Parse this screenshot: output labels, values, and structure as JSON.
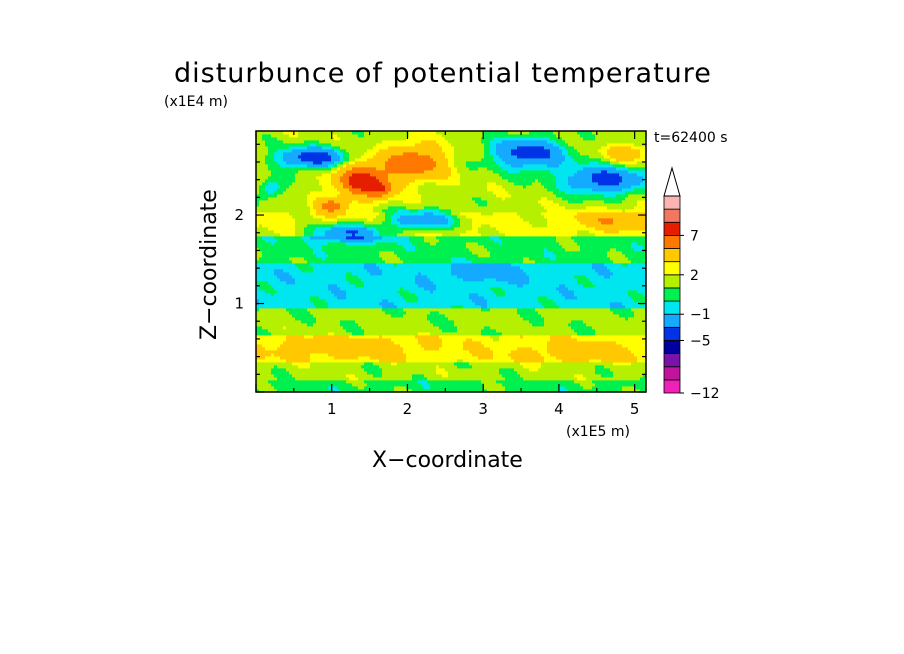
{
  "chart_data": {
    "type": "heatmap",
    "title": "disturbunce of potential temperature",
    "xlabel": "X−coordinate",
    "ylabel": "Z−coordinate",
    "x_unit": "(x1E5 m)",
    "y_unit": "(x1E4 m)",
    "time_label": "t=62400 s",
    "xlim": [
      0,
      5.15
    ],
    "ylim": [
      0,
      2.95
    ],
    "x_ticks": [
      1,
      2,
      3,
      4,
      5
    ],
    "y_ticks": [
      1,
      2
    ],
    "colorbar": {
      "levels": [
        -12,
        -11,
        -9,
        -7,
        -5,
        -3,
        -1,
        0,
        1,
        2,
        3,
        5,
        7,
        9,
        11
      ],
      "labeled_levels": [
        "-12",
        "-5",
        "-1",
        "2",
        "7"
      ],
      "colors": [
        "#f020b8",
        "#c0149c",
        "#7814a8",
        "#0000a0",
        "#0032e6",
        "#14aaff",
        "#00e6f0",
        "#00f050",
        "#b4f000",
        "#ffff00",
        "#ffc800",
        "#ff7800",
        "#e61e00",
        "#f07860",
        "#fab4b4"
      ],
      "open_top": true
    },
    "field_bands": [
      {
        "z_range": [
          0.0,
          0.12
        ],
        "theta_prime": 0.6
      },
      {
        "z_range": [
          0.12,
          0.35
        ],
        "theta_prime": 1.4
      },
      {
        "z_range": [
          0.35,
          0.65
        ],
        "theta_prime": 2.6
      },
      {
        "z_range": [
          0.65,
          0.95
        ],
        "theta_prime": 1.3
      },
      {
        "z_range": [
          0.95,
          1.45
        ],
        "theta_prime": -0.5
      },
      {
        "z_range": [
          1.45,
          1.75
        ],
        "theta_prime": 0.6
      },
      {
        "z_range": [
          1.75,
          2.05
        ],
        "theta_prime": 2.2
      },
      {
        "z_range": [
          2.05,
          2.95
        ],
        "theta_prime": 1.6
      }
    ],
    "features": [
      {
        "x": 0.75,
        "z": 2.65,
        "sx": 0.45,
        "sz": 0.12,
        "amp": -6.0
      },
      {
        "x": 1.4,
        "z": 2.4,
        "sx": 0.35,
        "sz": 0.2,
        "amp": 6.5
      },
      {
        "x": 1.65,
        "z": 2.28,
        "sx": 0.15,
        "sz": 0.1,
        "amp": 3.0
      },
      {
        "x": 1.0,
        "z": 2.1,
        "sx": 0.2,
        "sz": 0.1,
        "amp": 4.0
      },
      {
        "x": 2.1,
        "z": 2.6,
        "sx": 0.4,
        "sz": 0.2,
        "amp": 5.0
      },
      {
        "x": 1.2,
        "z": 1.8,
        "sx": 0.5,
        "sz": 0.1,
        "amp": -5.0
      },
      {
        "x": 2.2,
        "z": 1.95,
        "sx": 0.45,
        "sz": 0.1,
        "amp": -5.0
      },
      {
        "x": 0.2,
        "z": 2.3,
        "sx": 0.15,
        "sz": 0.1,
        "amp": -3.0
      },
      {
        "x": 3.6,
        "z": 2.7,
        "sx": 0.5,
        "sz": 0.18,
        "amp": -5.5
      },
      {
        "x": 4.6,
        "z": 2.4,
        "sx": 0.55,
        "sz": 0.16,
        "amp": -5.5
      },
      {
        "x": 4.9,
        "z": 2.7,
        "sx": 0.3,
        "sz": 0.1,
        "amp": 3.0
      },
      {
        "x": 4.7,
        "z": 1.95,
        "sx": 0.5,
        "sz": 0.12,
        "amp": 2.5
      },
      {
        "x": 3.0,
        "z": 1.35,
        "sx": 0.6,
        "sz": 0.1,
        "amp": -1.5
      },
      {
        "x": 1.2,
        "z": 0.5,
        "sx": 1.0,
        "sz": 0.12,
        "amp": 1.5
      },
      {
        "x": 4.3,
        "z": 0.45,
        "sx": 0.8,
        "sz": 0.12,
        "amp": 1.5
      }
    ]
  }
}
